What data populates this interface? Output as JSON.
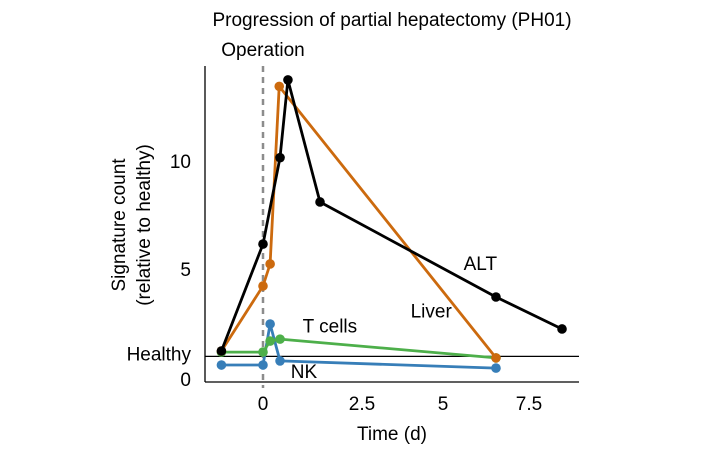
{
  "chart_data": {
    "type": "line",
    "title": "Progression of partial hepatectomy (PH01)",
    "xlabel": "Time (d)",
    "ylabel_line1": "Signature count",
    "ylabel_line2": "(relative to healthy)",
    "xticks": [
      {
        "value": 0,
        "label": "0"
      },
      {
        "value": 2.5,
        "label": "2.5"
      },
      {
        "value": 5,
        "label": "5"
      },
      {
        "value": 7.5,
        "label": "7.5"
      }
    ],
    "yticks": [
      {
        "value": 0,
        "label": "0"
      },
      {
        "value": 1,
        "label": "Healthy"
      },
      {
        "value": 5,
        "label": "5"
      },
      {
        "value": 10,
        "label": "10"
      }
    ],
    "xlim": [
      -1.5,
      8.9
    ],
    "ylim": [
      -0.2,
      14.4
    ],
    "reference_line": {
      "y": 1,
      "label": "Healthy"
    },
    "operation_line": {
      "x": 0,
      "label": "Operation"
    },
    "grid": false,
    "legend": "inline labels",
    "series": [
      {
        "name": "ALT",
        "color": "#000000",
        "x": [
          -1.05,
          0,
          0.43,
          0.63,
          1.44,
          6.54,
          8.46
        ],
        "y": [
          1.25,
          6.2,
          10.2,
          13.8,
          8.15,
          3.75,
          2.27
        ],
        "label_at": {
          "x": 5.6,
          "y": 5.0
        }
      },
      {
        "name": "Liver",
        "color": "#cc6a0e",
        "x": [
          -1.05,
          0,
          0.18,
          0.41,
          6.54
        ],
        "y": [
          1.25,
          4.26,
          5.28,
          13.5,
          0.93
        ],
        "label_at": {
          "x": 4.0,
          "y": 2.8
        }
      },
      {
        "name": "T cells",
        "color": "#4daf4a",
        "x": [
          -1.05,
          0,
          0.18,
          0.43,
          6.54
        ],
        "y": [
          1.2,
          1.2,
          1.71,
          1.8,
          0.93
        ],
        "label_at": {
          "x": 1.0,
          "y": 2.1
        }
      },
      {
        "name": "NK",
        "color": "#377eb8",
        "x": [
          -1.05,
          0,
          0.18,
          0.43,
          6.54
        ],
        "y": [
          0.6,
          0.6,
          2.5,
          0.79,
          0.46
        ],
        "label_at": {
          "x": 0.7,
          "y": 0.0
        }
      }
    ]
  }
}
